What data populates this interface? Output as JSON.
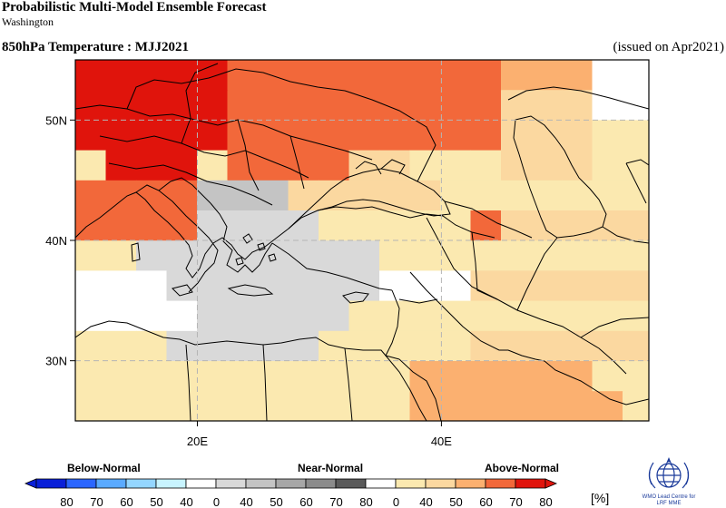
{
  "header": {
    "title": "Probabilistic Multi-Model Ensemble Forecast",
    "subtitle": "Washington",
    "variable": "850hPa Temperature : MJJ2021",
    "issued": "(issued on Apr2021)"
  },
  "map": {
    "projection": "lat-lon",
    "lon_range": [
      10,
      57
    ],
    "lat_range": [
      25,
      55
    ],
    "lat_ticks": [
      {
        "value": 50,
        "label": "50N"
      },
      {
        "value": 40,
        "label": "40N"
      },
      {
        "value": 30,
        "label": "30N"
      }
    ],
    "lon_ticks": [
      {
        "value": 20,
        "label": "20E"
      },
      {
        "value": 40,
        "label": "40E"
      }
    ],
    "grid": "dashed"
  },
  "palette": {
    "white": "#ffffff",
    "n40": "#d9d9d9",
    "n50": "#c4c4c4",
    "n60": "#a7a7a7",
    "n70": "#8b8b8b",
    "n80": "#5a5a5a",
    "a40": "#fbe9b0",
    "a50": "#fbd8a0",
    "a60": "#fbb070",
    "a70": "#f2683a",
    "a80": "#e0140c",
    "b40": "#c8f4ff",
    "b50": "#94d6ff",
    "b60": "#5aaaff",
    "b70": "#2b66ff",
    "b80": "#0a20d8"
  },
  "legend": {
    "categories": [
      "Below-Normal",
      "Near-Normal",
      "Above-Normal"
    ],
    "tick_labels": [
      "80",
      "70",
      "60",
      "50",
      "40",
      "0",
      "40",
      "50",
      "60",
      "70",
      "80",
      "0",
      "40",
      "50",
      "60",
      "70",
      "80"
    ],
    "unit": "[%]",
    "segments": [
      "b80",
      "b70",
      "b60",
      "b50",
      "b40",
      "white",
      "n40",
      "n50",
      "n60",
      "n70",
      "n80",
      "white",
      "a40",
      "a50",
      "a60",
      "a70",
      "a80"
    ]
  },
  "logo_text": [
    "WMO Lead Centre for",
    "LRF MME"
  ]
}
